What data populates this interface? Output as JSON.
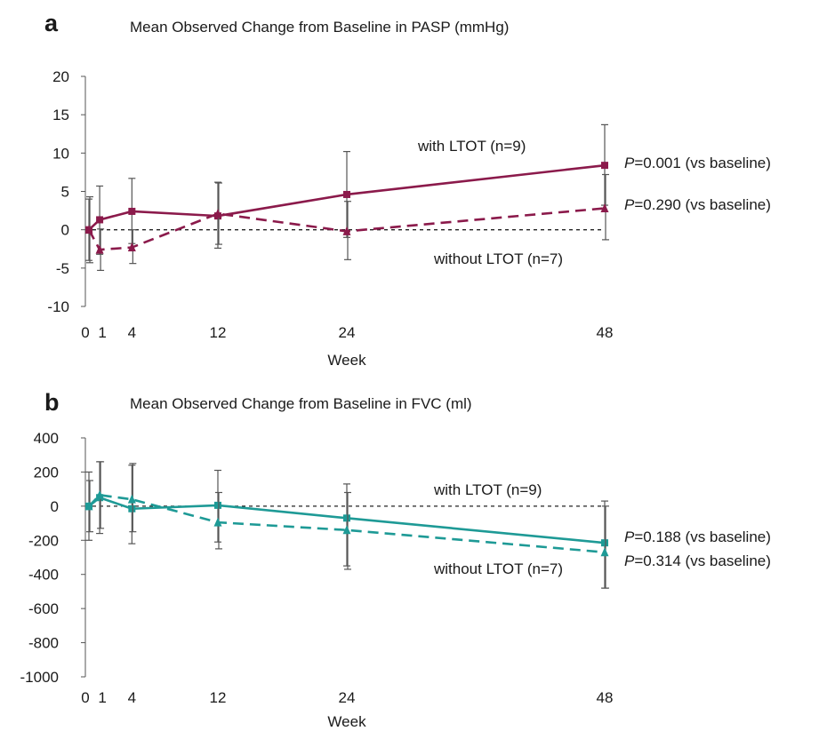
{
  "chart_data": [
    {
      "panel": "a",
      "type": "line",
      "title": "Mean Observed Change from Baseline in PASP (mmHg)",
      "xlabel": "Week",
      "ylabel": "",
      "x_ticks": [
        0,
        1,
        4,
        12,
        24,
        48
      ],
      "x_tick_labels": [
        "0",
        "1",
        "4",
        "12",
        "24",
        "48"
      ],
      "ylim": [
        -10,
        20
      ],
      "y_ticks": [
        -10,
        -5,
        0,
        5,
        10,
        15,
        20
      ],
      "color": "#8b1a4b",
      "series": [
        {
          "name": "with LTOT (n=9)",
          "style": "solid",
          "marker": "square",
          "x": [
            0,
            1,
            4,
            12,
            24,
            48
          ],
          "values": [
            0,
            1.3,
            2.4,
            1.8,
            4.6,
            8.4
          ],
          "err_low": [
            -4.0,
            -3.2,
            -1.8,
            -2.4,
            -1.0,
            3.2
          ],
          "err_high": [
            4.0,
            5.7,
            6.7,
            6.2,
            10.2,
            13.7
          ],
          "p_value_label": "P",
          "p_value_text": "=0.001 (vs baseline)"
        },
        {
          "name": "without LTOT (n=7)",
          "style": "dashed",
          "marker": "triangle",
          "x": [
            0,
            1,
            4,
            12,
            24,
            48
          ],
          "values": [
            0,
            -2.6,
            -2.3,
            2.1,
            -0.2,
            2.8
          ],
          "err_low": [
            -4.3,
            -5.3,
            -4.4,
            -1.9,
            -3.9,
            -1.3
          ],
          "err_high": [
            4.3,
            0.1,
            0,
            6.1,
            3.7,
            7.2
          ],
          "p_value_label": "P",
          "p_value_text": "=0.290 (vs baseline)"
        }
      ]
    },
    {
      "panel": "b",
      "type": "line",
      "title": "Mean Observed Change from Baseline in FVC (ml)",
      "xlabel": "Week",
      "ylabel": "",
      "x_ticks": [
        0,
        1,
        4,
        12,
        24,
        48
      ],
      "x_tick_labels": [
        "0",
        "1",
        "4",
        "12",
        "24",
        "48"
      ],
      "ylim": [
        -1000,
        400
      ],
      "y_ticks": [
        -1000,
        -800,
        -600,
        -400,
        -200,
        0,
        200,
        400
      ],
      "color": "#1e9a96",
      "series": [
        {
          "name": "with LTOT (n=9)",
          "style": "solid",
          "marker": "square",
          "x": [
            0,
            1,
            4,
            12,
            24,
            48
          ],
          "values": [
            0,
            50,
            -15,
            5,
            -70,
            -215
          ],
          "err_low": [
            -200,
            -160,
            -220,
            -210,
            -350,
            -480
          ],
          "err_high": [
            200,
            260,
            240,
            210,
            130,
            30
          ],
          "p_value_label": "P",
          "p_value_text": "=0.188 (vs baseline)"
        },
        {
          "name": "without LTOT (n=7)",
          "style": "dashed",
          "marker": "triangle",
          "x": [
            0,
            1,
            4,
            12,
            24,
            48
          ],
          "values": [
            0,
            65,
            40,
            -95,
            -140,
            -270
          ],
          "err_low": [
            -150,
            -130,
            -150,
            -250,
            -370,
            -480
          ],
          "err_high": [
            150,
            260,
            250,
            80,
            80,
            0
          ],
          "p_value_label": "P",
          "p_value_text": "=0.314 (vs baseline)"
        }
      ]
    }
  ]
}
